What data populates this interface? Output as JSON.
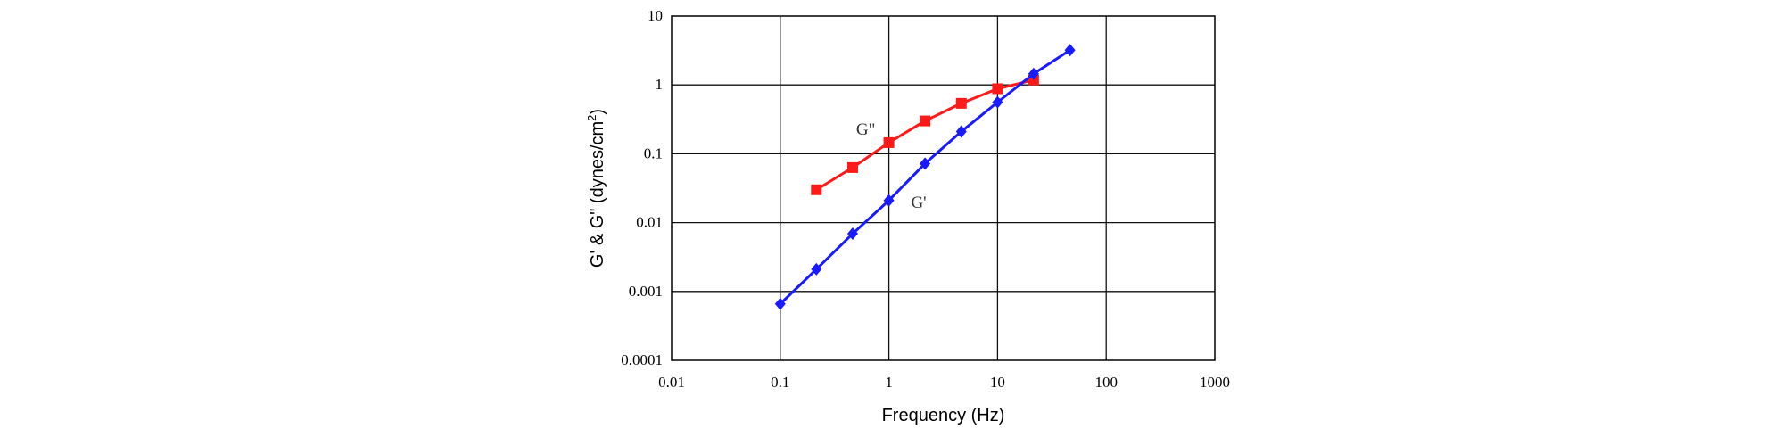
{
  "chart_data": {
    "type": "line",
    "xlabel": "Frequency (Hz)",
    "ylabel": "G' & G\" (dynes/cm",
    "ylabel_superscript": "2",
    "ylabel_close": ")",
    "x_scale": "log",
    "y_scale": "log",
    "xlim": [
      0.01,
      1000
    ],
    "ylim": [
      0.0001,
      10
    ],
    "x_ticks": [
      "0.01",
      "0.1",
      "1",
      "10",
      "100",
      "1000"
    ],
    "y_ticks": [
      "0.0001",
      "0.001",
      "0.01",
      "0.1",
      "1",
      "10"
    ],
    "grid": true,
    "series": [
      {
        "name": "G\"",
        "color": "#ff1a1a",
        "marker": "square",
        "x": [
          0.215,
          0.464,
          1.0,
          2.15,
          4.64,
          10.0,
          21.5
        ],
        "y": [
          0.03,
          0.063,
          0.145,
          0.3,
          0.54,
          0.88,
          1.18
        ]
      },
      {
        "name": "G'",
        "color": "#1a1aff",
        "marker": "diamond",
        "x": [
          0.1,
          0.215,
          0.464,
          1.0,
          2.15,
          4.64,
          10.0,
          21.5,
          46.4
        ],
        "y": [
          0.00066,
          0.0021,
          0.0069,
          0.021,
          0.072,
          0.21,
          0.56,
          1.45,
          3.2
        ]
      }
    ]
  }
}
